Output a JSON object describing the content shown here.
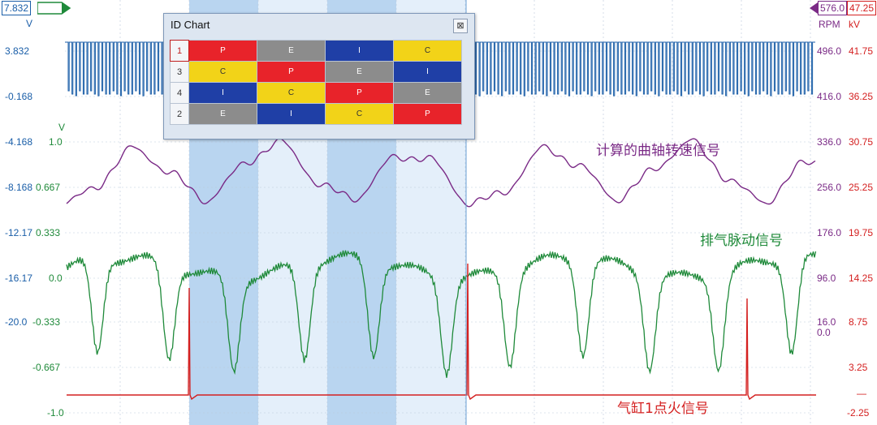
{
  "top_left_value": "7.832",
  "top_right_rpm_value": "576.0",
  "top_right_kv_value": "47.25",
  "units": {
    "left_v": "V",
    "green_v": "V",
    "rpm": "RPM",
    "kv": "kV"
  },
  "left_axis_blue": [
    "3.832",
    "-0.168",
    "-4.168",
    "-8.168",
    "-12.17",
    "-16.17",
    "-20.0"
  ],
  "left_axis_green": [
    "1.0",
    "0.667",
    "0.333",
    "0.0",
    "-0.333",
    "-0.667",
    "-1.0"
  ],
  "right_axis_rpm": [
    "496.0",
    "416.0",
    "336.0",
    "256.0",
    "176.0",
    "96.0",
    "16.0",
    "0.0"
  ],
  "right_axis_kv": [
    "41.75",
    "36.25",
    "30.75",
    "25.25",
    "19.75",
    "14.25",
    "8.75",
    "3.25",
    "—",
    "-2.25"
  ],
  "trace_labels": {
    "speed": "计算的曲轴转速信号",
    "exhaust": "排气脉动信号",
    "ignition": "气缸1点火信号"
  },
  "id_chart": {
    "title": "ID Chart",
    "close": "⊠",
    "rows": [
      {
        "num": "1",
        "cells": [
          "P",
          "E",
          "I",
          "C"
        ]
      },
      {
        "num": "3",
        "cells": [
          "C",
          "P",
          "E",
          "I"
        ]
      },
      {
        "num": "4",
        "cells": [
          "I",
          "C",
          "P",
          "E"
        ]
      },
      {
        "num": "2",
        "cells": [
          "E",
          "I",
          "C",
          "P"
        ]
      }
    ],
    "colors": {
      "P": "#e8232a",
      "E": "#8c8c8c",
      "I": "#1f3fa6",
      "C": "#f2d318"
    }
  }
}
